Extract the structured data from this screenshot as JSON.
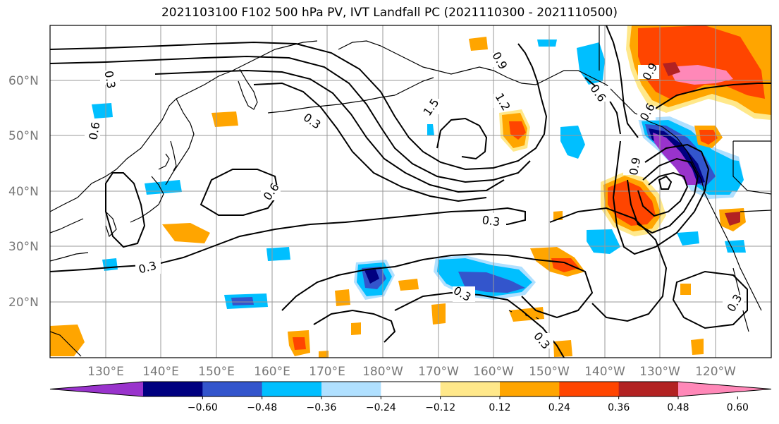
{
  "title": "2021103100 F102 500 hPa PV, IVT Landfall PC (2021110300 - 2021110500)",
  "lat_labels": [
    "60°N",
    "50°N",
    "40°N",
    "30°N",
    "20°N"
  ],
  "lon_labels": [
    "130°E",
    "140°E",
    "150°E",
    "160°E",
    "170°E",
    "180°W",
    "170°W",
    "160°W",
    "150°W",
    "140°W",
    "130°W",
    "120°W"
  ],
  "colorbar": {
    "tick_labels": [
      "−0.60",
      "−0.48",
      "−0.36",
      "−0.24",
      "−0.12",
      "0.12",
      "0.24",
      "0.36",
      "0.48",
      "0.60"
    ],
    "colors": [
      "#9933cc",
      "#000080",
      "#3355cc",
      "#00bfff",
      "#b0e0ff",
      "#ffffff",
      "#ffe88a",
      "#ffa500",
      "#ff4500",
      "#b22222",
      "#ff88b8"
    ]
  },
  "contour_labels": [
    "0.3",
    "0.6",
    "0.9",
    "1.5",
    "1.2",
    "0.3",
    "0.6",
    "0.9",
    "0.6",
    "0.9",
    "0.6",
    "0.3",
    "0.3",
    "0.3",
    "0.3",
    "0.3"
  ],
  "colors": {
    "purple": "#9933cc",
    "navy": "#000080",
    "blue": "#3355cc",
    "cyan": "#00bfff",
    "light_blue": "#b0e0ff",
    "yellow": "#ffe88a",
    "orange": "#ffa500",
    "red_orange": "#ff4500",
    "dark_red": "#b22222",
    "pink": "#ff88b8",
    "grid": "#999999",
    "axis_label": "#777777"
  }
}
